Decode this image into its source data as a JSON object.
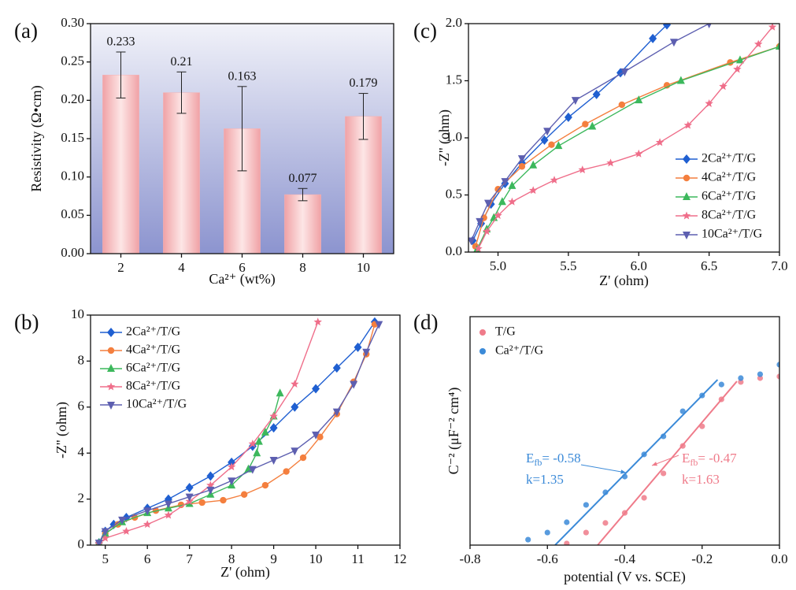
{
  "chart_data": [
    {
      "type": "bar",
      "panel_label": "(a)",
      "ylabel": "Resistivity (Ω•cm)",
      "xlabel": "Ca²⁺ (wt%)",
      "categories": [
        "2",
        "4",
        "6",
        "8",
        "10"
      ],
      "values": [
        0.233,
        0.21,
        0.163,
        0.077,
        0.179
      ],
      "errors": [
        0.03,
        0.027,
        0.055,
        0.008,
        0.03
      ],
      "color": "#f4b2b4",
      "ylim": [
        0,
        0.3
      ],
      "yticks": [
        {
          "value": 0,
          "label": "0.00"
        },
        {
          "value": 0.05,
          "label": "0.05"
        },
        {
          "value": 0.1,
          "label": "0.10"
        },
        {
          "value": 0.15,
          "label": "0.15"
        },
        {
          "value": 0.2,
          "label": "0.20"
        },
        {
          "value": 0.25,
          "label": "0.25"
        },
        {
          "value": 0.3,
          "label": "0.30"
        }
      ],
      "grid": false
    },
    {
      "type": "line",
      "panel_label": "(b)",
      "xlabel": "Z' (ohm)",
      "ylabel": "-Z'' (ohm)",
      "xlim": [
        4.65,
        12
      ],
      "ylim": [
        0,
        10
      ],
      "xticks": [
        5,
        6,
        7,
        8,
        9,
        10,
        11,
        12
      ],
      "yticks": [
        0,
        2,
        4,
        6,
        8,
        10
      ],
      "legend": "upper left",
      "series": [
        {
          "name": "2Ca²⁺/T/G",
          "color": "#1f5fd1",
          "marker": "diamond",
          "x": [
            4.85,
            5,
            5.2,
            5.5,
            6,
            6.5,
            7,
            7.5,
            8,
            8.5,
            9,
            9.5,
            10,
            10.5,
            11,
            11.4
          ],
          "y": [
            0.1,
            0.6,
            0.9,
            1.2,
            1.6,
            2.0,
            2.5,
            3.0,
            3.6,
            4.3,
            5.1,
            6.0,
            6.8,
            7.7,
            8.6,
            9.7
          ]
        },
        {
          "name": "4Ca²⁺/T/G",
          "color": "#f47f3e",
          "marker": "circle",
          "x": [
            4.85,
            5,
            5.3,
            5.7,
            6.2,
            6.8,
            7.3,
            7.8,
            8.3,
            8.8,
            9.3,
            9.7,
            10.1,
            10.5,
            10.9,
            11.2,
            11.4
          ],
          "y": [
            0.1,
            0.5,
            0.9,
            1.2,
            1.5,
            1.75,
            1.85,
            1.95,
            2.2,
            2.6,
            3.2,
            3.8,
            4.7,
            5.7,
            7.1,
            8.3,
            9.6
          ]
        },
        {
          "name": "6Ca²⁺/T/G",
          "color": "#3cb85c",
          "marker": "triangle-up",
          "x": [
            4.85,
            5,
            5.4,
            6,
            6.5,
            7,
            7.5,
            8,
            8.4,
            8.6,
            8.65,
            8.8,
            9,
            9.15
          ],
          "y": [
            0.1,
            0.5,
            1.0,
            1.4,
            1.6,
            1.8,
            2.2,
            2.6,
            3.3,
            4.0,
            4.5,
            4.9,
            5.6,
            6.6
          ]
        },
        {
          "name": "8Ca²⁺/T/G",
          "color": "#ef6e8a",
          "marker": "star",
          "x": [
            4.85,
            5,
            5.5,
            6,
            6.5,
            7,
            7.5,
            8,
            8.5,
            9,
            9.5,
            10.05
          ],
          "y": [
            0.05,
            0.3,
            0.6,
            0.9,
            1.3,
            1.9,
            2.6,
            3.4,
            4.4,
            5.6,
            7.0,
            9.7
          ]
        },
        {
          "name": "10Ca²⁺/T/G",
          "color": "#5d5fb0",
          "marker": "triangle-down",
          "x": [
            4.85,
            5,
            5.4,
            6,
            6.5,
            7,
            7.5,
            8,
            8.5,
            9,
            9.5,
            10,
            10.5,
            10.9,
            11.2,
            11.5
          ],
          "y": [
            0.1,
            0.6,
            1.1,
            1.5,
            1.8,
            2.1,
            2.4,
            2.8,
            3.3,
            3.7,
            4.1,
            4.8,
            5.8,
            7.0,
            8.4,
            9.6
          ]
        }
      ]
    },
    {
      "type": "line",
      "panel_label": "(c)",
      "xlabel": "Z' (ohm)",
      "ylabel": "-Z'' (ohm)",
      "xlim": [
        4.79,
        7
      ],
      "ylim": [
        0,
        2
      ],
      "xticks": [
        {
          "value": 5,
          "label": "5.0"
        },
        5.5,
        {
          "value": 6,
          "label": "6.0"
        },
        6.5,
        {
          "value": 7,
          "label": "7.0"
        }
      ],
      "yticks": [
        {
          "value": 0,
          "label": "0.0"
        },
        0.5,
        {
          "value": 1,
          "label": "1.0"
        },
        1.5,
        {
          "value": 2,
          "label": "2.0"
        }
      ],
      "legend": "lower right",
      "series": [
        {
          "name": "2Ca²⁺/T/G",
          "color": "#1f5fd1",
          "marker": "diamond",
          "x": [
            4.82,
            4.88,
            4.95,
            5.05,
            5.17,
            5.33,
            5.5,
            5.7,
            5.87,
            6.1,
            6.2
          ],
          "y": [
            0.1,
            0.25,
            0.42,
            0.6,
            0.78,
            0.98,
            1.18,
            1.38,
            1.57,
            1.87,
            1.99
          ]
        },
        {
          "name": "4Ca²⁺/T/G",
          "color": "#f47f3e",
          "marker": "circle",
          "x": [
            4.84,
            4.9,
            5.0,
            5.17,
            5.38,
            5.62,
            5.88,
            6.2,
            6.65,
            7.0
          ],
          "y": [
            0.05,
            0.3,
            0.55,
            0.75,
            0.94,
            1.12,
            1.29,
            1.46,
            1.66,
            1.8
          ]
        },
        {
          "name": "6Ca²⁺/T/G",
          "color": "#3cb85c",
          "marker": "triangle-up",
          "x": [
            4.85,
            4.92,
            4.97,
            5.03,
            5.1,
            5.25,
            5.43,
            5.67,
            6.0,
            6.3,
            6.72,
            7.0
          ],
          "y": [
            0.02,
            0.2,
            0.3,
            0.44,
            0.58,
            0.76,
            0.93,
            1.1,
            1.33,
            1.5,
            1.68,
            1.8
          ]
        },
        {
          "name": "8Ca²⁺/T/G",
          "color": "#ef6e8a",
          "marker": "star",
          "x": [
            4.86,
            4.92,
            5.0,
            5.1,
            5.25,
            5.4,
            5.6,
            5.8,
            6.0,
            6.15,
            6.35,
            6.5,
            6.6,
            6.7,
            6.85,
            6.95
          ],
          "y": [
            0.03,
            0.18,
            0.32,
            0.44,
            0.54,
            0.63,
            0.72,
            0.78,
            0.86,
            0.96,
            1.11,
            1.3,
            1.45,
            1.6,
            1.82,
            1.97
          ]
        },
        {
          "name": "10Ca²⁺/T/G",
          "color": "#5d5fb0",
          "marker": "triangle-down",
          "x": [
            4.81,
            4.87,
            4.93,
            5.05,
            5.17,
            5.35,
            5.55,
            5.9,
            6.25,
            6.5
          ],
          "y": [
            0.1,
            0.27,
            0.43,
            0.62,
            0.82,
            1.06,
            1.33,
            1.58,
            1.84,
            2.0
          ]
        }
      ]
    },
    {
      "type": "scatter",
      "panel_label": "(d)",
      "xlabel": "potential (V vs. SCE)",
      "ylabel": "C⁻² (μF⁻² cm⁴)",
      "xlim": [
        -0.8,
        0
      ],
      "ylim": [
        0,
        10
      ],
      "xticks": [
        -0.8,
        -0.6,
        -0.4,
        -0.2,
        {
          "value": 0,
          "label": "0.0"
        }
      ],
      "legend": "upper left",
      "series": [
        {
          "name": "T/G",
          "color": "#ef7b8a",
          "x": [
            -0.55,
            -0.5,
            -0.45,
            -0.4,
            -0.35,
            -0.3,
            -0.25,
            -0.2,
            -0.15,
            -0.1,
            -0.05,
            0
          ],
          "y": [
            0.07,
            0.55,
            0.97,
            1.41,
            2.07,
            3.14,
            4.34,
            5.2,
            6.38,
            7.14,
            7.31,
            7.38
          ],
          "fit_x": [
            -0.47,
            -0.11
          ],
          "fit_y": [
            0,
            7.17
          ]
        },
        {
          "name": "Ca²⁺/T/G",
          "color": "#3b8ad8",
          "x": [
            -0.65,
            -0.6,
            -0.55,
            -0.5,
            -0.45,
            -0.4,
            -0.35,
            -0.3,
            -0.25,
            -0.2,
            -0.15,
            -0.1,
            -0.05,
            0
          ],
          "y": [
            0.24,
            0.55,
            1.0,
            1.76,
            2.31,
            3.0,
            3.97,
            4.76,
            5.86,
            6.55,
            7.03,
            7.31,
            7.48,
            7.9
          ],
          "fit_x": [
            -0.58,
            -0.16
          ],
          "fit_y": [
            0,
            7.24
          ]
        }
      ],
      "annotations": [
        {
          "series": 1,
          "symbol": "E",
          "sub": "fb",
          "text": "= -0.58",
          "k": "k=1.35"
        },
        {
          "series": 0,
          "symbol": "E",
          "sub": "fb",
          "text": "= -0.47",
          "k": "k=1.63"
        }
      ]
    }
  ]
}
